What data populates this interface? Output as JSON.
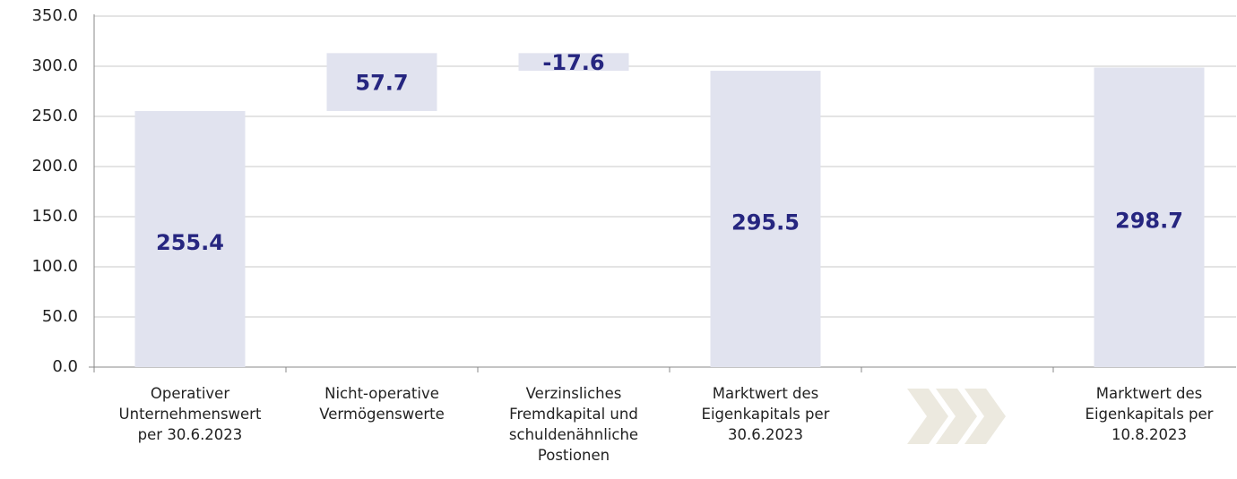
{
  "chart_data": {
    "type": "waterfall",
    "categories": [
      "Operativer\nUnternehmenswert\nper 30.6.2023",
      "Nicht-operative\nVermögenswerte",
      "Verzinsliches\nFremdkapital und\nschuldenähnliche\nPostionen",
      "Marktwert des\nEigenkapitals per\n30.6.2023",
      null,
      "Marktwert des\nEigenkapitals per\n10.8.2023"
    ],
    "values": [
      255.4,
      57.7,
      -17.6,
      295.5,
      null,
      298.7
    ],
    "measures": [
      "total",
      "relative",
      "relative",
      "total",
      null,
      "total"
    ],
    "color": "#e1e3ef",
    "label_color": "#262680",
    "ylim": [
      0,
      350
    ],
    "yticks": [
      {
        "value": 0,
        "label": "0.0"
      },
      {
        "value": 50,
        "label": "50.0"
      },
      {
        "value": 100,
        "label": "100.0"
      },
      {
        "value": 150,
        "label": "150.0"
      },
      {
        "value": 200,
        "label": "200.0"
      },
      {
        "value": 250,
        "label": "250.0"
      },
      {
        "value": 300,
        "label": "300.0"
      },
      {
        "value": 350,
        "label": "350.0"
      }
    ],
    "grid": true
  }
}
